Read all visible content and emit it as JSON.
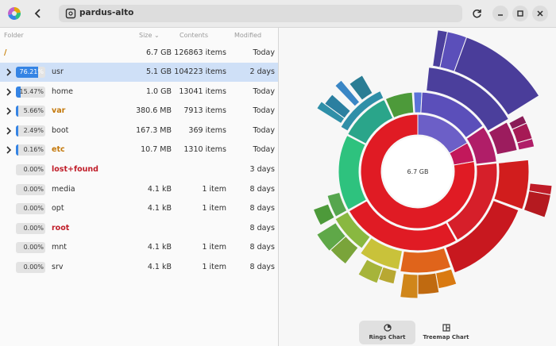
{
  "header": {
    "location": "pardus-alto"
  },
  "columns": {
    "folder": "Folder",
    "size": "Size",
    "contents": "Contents",
    "modified": "Modified"
  },
  "root_row": {
    "name": "/",
    "size": "6.7 GB",
    "contents": "126863 items",
    "modified": "Today"
  },
  "rows": [
    {
      "name": "usr",
      "pct": "76.21%",
      "fraction": 0.7621,
      "size": "5.1 GB",
      "contents": "104223 items",
      "modified": "2 days",
      "expandable": true,
      "selected": true,
      "style": "normal"
    },
    {
      "name": "home",
      "pct": "15.47%",
      "fraction": 0.1547,
      "size": "1.0 GB",
      "contents": "13041 items",
      "modified": "Today",
      "expandable": true,
      "selected": false,
      "style": "normal"
    },
    {
      "name": "var",
      "pct": "5.66%",
      "fraction": 0.0566,
      "size": "380.6 MB",
      "contents": "7913 items",
      "modified": "Today",
      "expandable": true,
      "selected": false,
      "style": "orange"
    },
    {
      "name": "boot",
      "pct": "2.49%",
      "fraction": 0.0249,
      "size": "167.3 MB",
      "contents": "369 items",
      "modified": "Today",
      "expandable": true,
      "selected": false,
      "style": "normal"
    },
    {
      "name": "etc",
      "pct": "0.16%",
      "fraction": 0.0016,
      "size": "10.7 MB",
      "contents": "1310 items",
      "modified": "Today",
      "expandable": true,
      "selected": false,
      "style": "orange"
    },
    {
      "name": "lost+found",
      "pct": "0.00%",
      "fraction": 0,
      "size": "",
      "contents": "",
      "modified": "3 days",
      "expandable": false,
      "selected": false,
      "style": "red"
    },
    {
      "name": "media",
      "pct": "0.00%",
      "fraction": 0,
      "size": "4.1 kB",
      "contents": "1 item",
      "modified": "8 days",
      "expandable": false,
      "selected": false,
      "style": "normal"
    },
    {
      "name": "opt",
      "pct": "0.00%",
      "fraction": 0,
      "size": "4.1 kB",
      "contents": "1 item",
      "modified": "8 days",
      "expandable": false,
      "selected": false,
      "style": "normal"
    },
    {
      "name": "root",
      "pct": "0.00%",
      "fraction": 0,
      "size": "",
      "contents": "",
      "modified": "8 days",
      "expandable": false,
      "selected": false,
      "style": "red"
    },
    {
      "name": "mnt",
      "pct": "0.00%",
      "fraction": 0,
      "size": "4.1 kB",
      "contents": "1 item",
      "modified": "8 days",
      "expandable": false,
      "selected": false,
      "style": "normal"
    },
    {
      "name": "srv",
      "pct": "0.00%",
      "fraction": 0,
      "size": "4.1 kB",
      "contents": "1 item",
      "modified": "8 days",
      "expandable": false,
      "selected": false,
      "style": "normal"
    }
  ],
  "chart": {
    "center_label": "6.7 GB"
  },
  "view_toggle": {
    "rings_label": "Rings Chart",
    "treemap_label": "Treemap Chart",
    "active": "rings"
  },
  "colors": {
    "accent": "#3584e4",
    "selection": "#cfe0f7"
  }
}
